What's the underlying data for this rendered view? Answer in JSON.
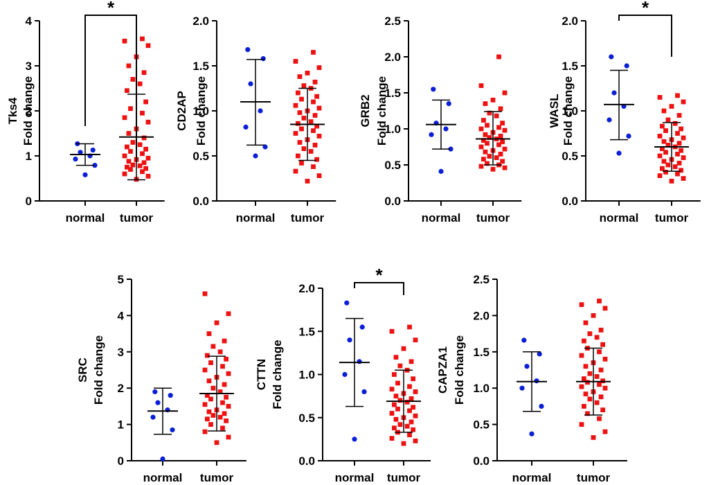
{
  "figure": {
    "colors": {
      "normal": "#0a1fd6",
      "tumor": "#ee1111"
    },
    "panels": [
      {
        "gene": "Tks4",
        "ylabel": "Fold change",
        "ylim": [
          0,
          4
        ],
        "ticks": [
          "0",
          "1",
          "2",
          "3",
          "4"
        ],
        "categories": [
          "normal",
          "tumor"
        ],
        "significance": "*",
        "normal": {
          "mean": 1.03,
          "sd_low": 0.79,
          "sd_high": 1.27,
          "points": [
            0.58,
            0.79,
            0.93,
            1.0,
            1.08,
            1.13,
            1.27
          ]
        },
        "tumor": {
          "mean": 1.42,
          "sd_low": 0.47,
          "sd_high": 2.37,
          "points": [
            0.48,
            0.55,
            0.6,
            0.65,
            0.7,
            0.72,
            0.75,
            0.78,
            0.8,
            0.85,
            0.88,
            0.92,
            0.95,
            1.0,
            1.05,
            1.1,
            1.15,
            1.2,
            1.25,
            1.3,
            1.4,
            1.5,
            1.6,
            1.75,
            1.85,
            1.95,
            2.05,
            2.2,
            2.45,
            2.6,
            2.7,
            2.85,
            3.0,
            3.2,
            3.45,
            3.55,
            3.6
          ]
        }
      },
      {
        "gene": "CD2AP",
        "ylabel": "Fold change",
        "ylim": [
          0,
          2
        ],
        "ticks": [
          "0.0",
          "0.5",
          "1.0",
          "1.5",
          "2.0"
        ],
        "categories": [
          "normal",
          "tumor"
        ],
        "significance": "",
        "normal": {
          "mean": 1.1,
          "sd_low": 0.62,
          "sd_high": 1.57,
          "points": [
            0.5,
            0.6,
            0.82,
            1.0,
            1.3,
            1.58,
            1.68
          ]
        },
        "tumor": {
          "mean": 0.85,
          "sd_low": 0.45,
          "sd_high": 1.25,
          "points": [
            0.22,
            0.28,
            0.33,
            0.38,
            0.42,
            0.46,
            0.5,
            0.55,
            0.58,
            0.62,
            0.65,
            0.68,
            0.72,
            0.75,
            0.78,
            0.8,
            0.83,
            0.86,
            0.88,
            0.92,
            0.95,
            0.98,
            1.0,
            1.03,
            1.06,
            1.1,
            1.13,
            1.16,
            1.2,
            1.25,
            1.28,
            1.32,
            1.38,
            1.42,
            1.48,
            1.55,
            1.65
          ]
        }
      },
      {
        "gene": "GRB2",
        "ylabel": "Fold change",
        "ylim": [
          0,
          2.5
        ],
        "ticks": [
          "0.0",
          "0.5",
          "1.0",
          "1.5",
          "2.0",
          "2.5"
        ],
        "categories": [
          "normal",
          "tumor"
        ],
        "significance": "",
        "normal": {
          "mean": 1.06,
          "sd_low": 0.72,
          "sd_high": 1.4,
          "points": [
            0.41,
            0.72,
            0.92,
            1.0,
            1.08,
            1.35,
            1.55
          ]
        },
        "tumor": {
          "mean": 0.86,
          "sd_low": 0.5,
          "sd_high": 1.24,
          "points": [
            0.44,
            0.46,
            0.48,
            0.5,
            0.52,
            0.55,
            0.58,
            0.6,
            0.62,
            0.65,
            0.68,
            0.7,
            0.72,
            0.75,
            0.78,
            0.8,
            0.82,
            0.84,
            0.86,
            0.88,
            0.9,
            0.92,
            0.95,
            0.98,
            1.0,
            1.02,
            1.05,
            1.08,
            1.12,
            1.18,
            1.22,
            1.28,
            1.35,
            1.4,
            1.5,
            1.6,
            2.0
          ]
        }
      },
      {
        "gene": "WASL",
        "ylabel": "Fold change",
        "ylim": [
          0,
          2
        ],
        "ticks": [
          "0.0",
          "0.5",
          "1.0",
          "1.5",
          "2.0"
        ],
        "categories": [
          "normal",
          "tumor"
        ],
        "significance": "*",
        "normal": {
          "mean": 1.07,
          "sd_low": 0.68,
          "sd_high": 1.45,
          "points": [
            0.53,
            0.72,
            0.9,
            1.05,
            1.2,
            1.5,
            1.6
          ]
        },
        "tumor": {
          "mean": 0.6,
          "sd_low": 0.33,
          "sd_high": 0.87,
          "points": [
            0.22,
            0.25,
            0.28,
            0.3,
            0.32,
            0.34,
            0.36,
            0.38,
            0.4,
            0.42,
            0.44,
            0.46,
            0.48,
            0.5,
            0.52,
            0.54,
            0.56,
            0.58,
            0.6,
            0.62,
            0.64,
            0.66,
            0.68,
            0.7,
            0.72,
            0.75,
            0.78,
            0.8,
            0.83,
            0.86,
            0.9,
            0.95,
            1.0,
            1.05,
            1.1,
            1.15,
            1.17
          ]
        }
      },
      {
        "gene": "SRC",
        "ylabel": "Fold change",
        "ylim": [
          0,
          5
        ],
        "ticks": [
          "0",
          "1",
          "2",
          "3",
          "4",
          "5"
        ],
        "categories": [
          "normal",
          "tumor"
        ],
        "significance": "",
        "normal": {
          "mean": 1.37,
          "sd_low": 0.73,
          "sd_high": 2.0,
          "points": [
            0.05,
            0.85,
            1.2,
            1.4,
            1.6,
            1.8,
            1.9
          ]
        },
        "tumor": {
          "mean": 1.85,
          "sd_low": 0.82,
          "sd_high": 2.88,
          "points": [
            0.5,
            0.65,
            0.8,
            0.9,
            1.0,
            1.1,
            1.15,
            1.2,
            1.25,
            1.3,
            1.35,
            1.4,
            1.5,
            1.55,
            1.6,
            1.7,
            1.75,
            1.8,
            1.9,
            2.0,
            2.1,
            2.2,
            2.3,
            2.4,
            2.5,
            2.6,
            2.7,
            2.8,
            2.9,
            3.0,
            3.15,
            3.3,
            3.5,
            3.8,
            4.05,
            4.6
          ]
        }
      },
      {
        "gene": "CTTN",
        "ylabel": "Fold change",
        "ylim": [
          0,
          2
        ],
        "ticks": [
          "0.0",
          "0.5",
          "1.0",
          "1.5",
          "2.0"
        ],
        "categories": [
          "normal",
          "tumor"
        ],
        "significance": "*",
        "normal": {
          "mean": 1.14,
          "sd_low": 0.63,
          "sd_high": 1.65,
          "points": [
            0.25,
            0.8,
            1.0,
            1.15,
            1.4,
            1.55,
            1.83
          ]
        },
        "tumor": {
          "mean": 0.69,
          "sd_low": 0.33,
          "sd_high": 1.05,
          "points": [
            0.2,
            0.23,
            0.26,
            0.3,
            0.33,
            0.36,
            0.38,
            0.4,
            0.42,
            0.45,
            0.48,
            0.5,
            0.52,
            0.55,
            0.58,
            0.6,
            0.62,
            0.65,
            0.68,
            0.7,
            0.72,
            0.75,
            0.78,
            0.8,
            0.83,
            0.86,
            0.9,
            0.95,
            1.0,
            1.05,
            1.1,
            1.15,
            1.2,
            1.3,
            1.4,
            1.5,
            1.55
          ]
        }
      },
      {
        "gene": "CAPZA1",
        "ylabel": "Fold change",
        "ylim": [
          0,
          2.5
        ],
        "ticks": [
          "0.0",
          "0.5",
          "1.0",
          "1.5",
          "2.0",
          "2.5"
        ],
        "categories": [
          "normal",
          "tumor"
        ],
        "significance": "",
        "normal": {
          "mean": 1.09,
          "sd_low": 0.68,
          "sd_high": 1.5,
          "points": [
            0.37,
            0.75,
            1.0,
            1.1,
            1.3,
            1.47,
            1.66
          ]
        },
        "tumor": {
          "mean": 1.09,
          "sd_low": 0.63,
          "sd_high": 1.55,
          "points": [
            0.32,
            0.4,
            0.5,
            0.58,
            0.65,
            0.7,
            0.75,
            0.8,
            0.85,
            0.88,
            0.92,
            0.95,
            1.0,
            1.02,
            1.05,
            1.08,
            1.1,
            1.13,
            1.16,
            1.2,
            1.25,
            1.3,
            1.35,
            1.4,
            1.45,
            1.5,
            1.55,
            1.6,
            1.65,
            1.7,
            1.75,
            1.8,
            1.9,
            2.0,
            2.1,
            2.15,
            2.2
          ]
        }
      }
    ]
  },
  "chart_data": [
    {
      "type": "scatter",
      "title": "Tks4",
      "ylabel": "Tks4 Fold change",
      "categories": [
        "normal",
        "tumor"
      ],
      "ylim": [
        0,
        4
      ],
      "series": [
        {
          "name": "normal",
          "mean": 1.03,
          "sd": [
            0.79,
            1.27
          ]
        },
        {
          "name": "tumor",
          "mean": 1.42,
          "sd": [
            0.47,
            2.37
          ]
        }
      ],
      "annotation": "*"
    },
    {
      "type": "scatter",
      "title": "CD2AP",
      "ylabel": "CD2AP Fold change",
      "categories": [
        "normal",
        "tumor"
      ],
      "ylim": [
        0,
        2
      ],
      "series": [
        {
          "name": "normal",
          "mean": 1.1,
          "sd": [
            0.62,
            1.57
          ]
        },
        {
          "name": "tumor",
          "mean": 0.85,
          "sd": [
            0.45,
            1.25
          ]
        }
      ]
    },
    {
      "type": "scatter",
      "title": "GRB2",
      "ylabel": "GRB2 Fold change",
      "categories": [
        "normal",
        "tumor"
      ],
      "ylim": [
        0,
        2.5
      ],
      "series": [
        {
          "name": "normal",
          "mean": 1.06,
          "sd": [
            0.72,
            1.4
          ]
        },
        {
          "name": "tumor",
          "mean": 0.86,
          "sd": [
            0.5,
            1.24
          ]
        }
      ]
    },
    {
      "type": "scatter",
      "title": "WASL",
      "ylabel": "WASL Fold change",
      "categories": [
        "normal",
        "tumor"
      ],
      "ylim": [
        0,
        2
      ],
      "series": [
        {
          "name": "normal",
          "mean": 1.07,
          "sd": [
            0.68,
            1.45
          ]
        },
        {
          "name": "tumor",
          "mean": 0.6,
          "sd": [
            0.33,
            0.87
          ]
        }
      ],
      "annotation": "*"
    },
    {
      "type": "scatter",
      "title": "SRC",
      "ylabel": "SRC Fold change",
      "categories": [
        "normal",
        "tumor"
      ],
      "ylim": [
        0,
        5
      ],
      "series": [
        {
          "name": "normal",
          "mean": 1.37,
          "sd": [
            0.73,
            2.0
          ]
        },
        {
          "name": "tumor",
          "mean": 1.85,
          "sd": [
            0.82,
            2.88
          ]
        }
      ]
    },
    {
      "type": "scatter",
      "title": "CTTN",
      "ylabel": "CTTN Fold change",
      "categories": [
        "normal",
        "tumor"
      ],
      "ylim": [
        0,
        2
      ],
      "series": [
        {
          "name": "normal",
          "mean": 1.14,
          "sd": [
            0.63,
            1.65
          ]
        },
        {
          "name": "tumor",
          "mean": 0.69,
          "sd": [
            0.33,
            1.05
          ]
        }
      ],
      "annotation": "*"
    },
    {
      "type": "scatter",
      "title": "CAPZA1",
      "ylabel": "CAPZA1 Fold change",
      "categories": [
        "normal",
        "tumor"
      ],
      "ylim": [
        0,
        2.5
      ],
      "series": [
        {
          "name": "normal",
          "mean": 1.09,
          "sd": [
            0.68,
            1.5
          ]
        },
        {
          "name": "tumor",
          "mean": 1.09,
          "sd": [
            0.63,
            1.55
          ]
        }
      ]
    }
  ]
}
